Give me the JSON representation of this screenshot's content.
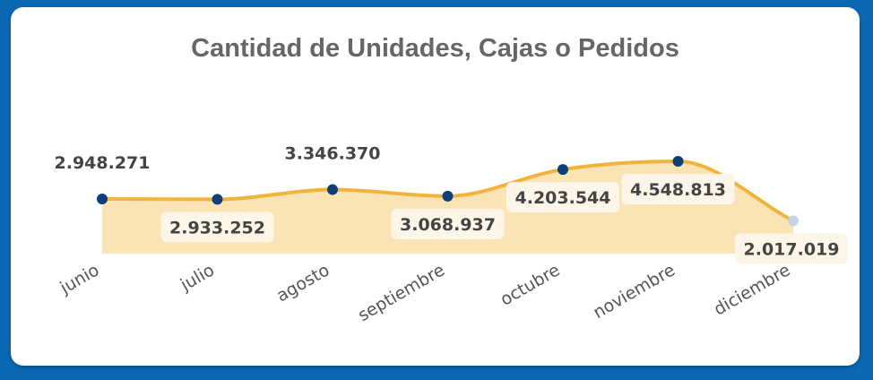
{
  "chart_data": {
    "type": "area",
    "title": "Cantidad de Unidades, Cajas o Pedidos",
    "categories": [
      "junio",
      "julio",
      "agosto",
      "septiembre",
      "octubre",
      "noviembre",
      "diciembre"
    ],
    "values": [
      2948271,
      2933252,
      3346370,
      3068937,
      4203544,
      4548813,
      2017019
    ],
    "value_labels": [
      "2.948.271",
      "2.933.252",
      "3.346.370",
      "3.068.937",
      "4.203.544",
      "4.548.813",
      "2.017.019"
    ],
    "label_position": [
      "above",
      "below",
      "above",
      "below",
      "below",
      "below",
      "below"
    ],
    "xlabel": "",
    "ylabel": "",
    "grid": false,
    "legend": "none",
    "colors": {
      "line": "#f0b43c",
      "fill": "#fae3b4",
      "point": "#0f3f78",
      "label_box": "#fdf6e8",
      "background": "#0a67b4"
    }
  }
}
